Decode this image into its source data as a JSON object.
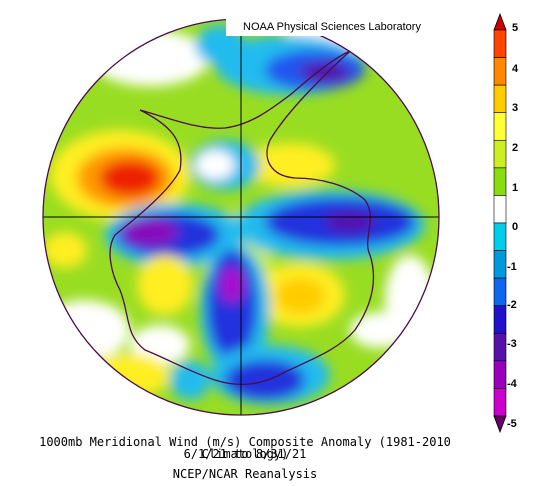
{
  "header": {
    "lab_name": "NOAA Physical Sciences Laboratory"
  },
  "colorbar": {
    "labels": [
      "5",
      "4",
      "3",
      "2",
      "1",
      "0",
      "-1",
      "-2",
      "-3",
      "-4",
      "-5"
    ],
    "colors": [
      "#cc0000",
      "#ff4400",
      "#ff8800",
      "#ffcc00",
      "#ffff33",
      "#ccee22",
      "#88dd11",
      "#ffffff",
      "#00ccee",
      "#0099dd",
      "#1166ee",
      "#2211cc",
      "#5511aa",
      "#9900bb",
      "#cc00cc",
      "#660066"
    ]
  },
  "map": {
    "projection": "south polar stereographic",
    "region": "Antarctica"
  },
  "caption": {
    "line1": "1000mb Meridional Wind (m/s) Composite Anomaly (1981-2010 Climatology)",
    "line2": "6/1/21  to 8/31/21",
    "line3": "NCEP/NCAR Reanalysis"
  }
}
